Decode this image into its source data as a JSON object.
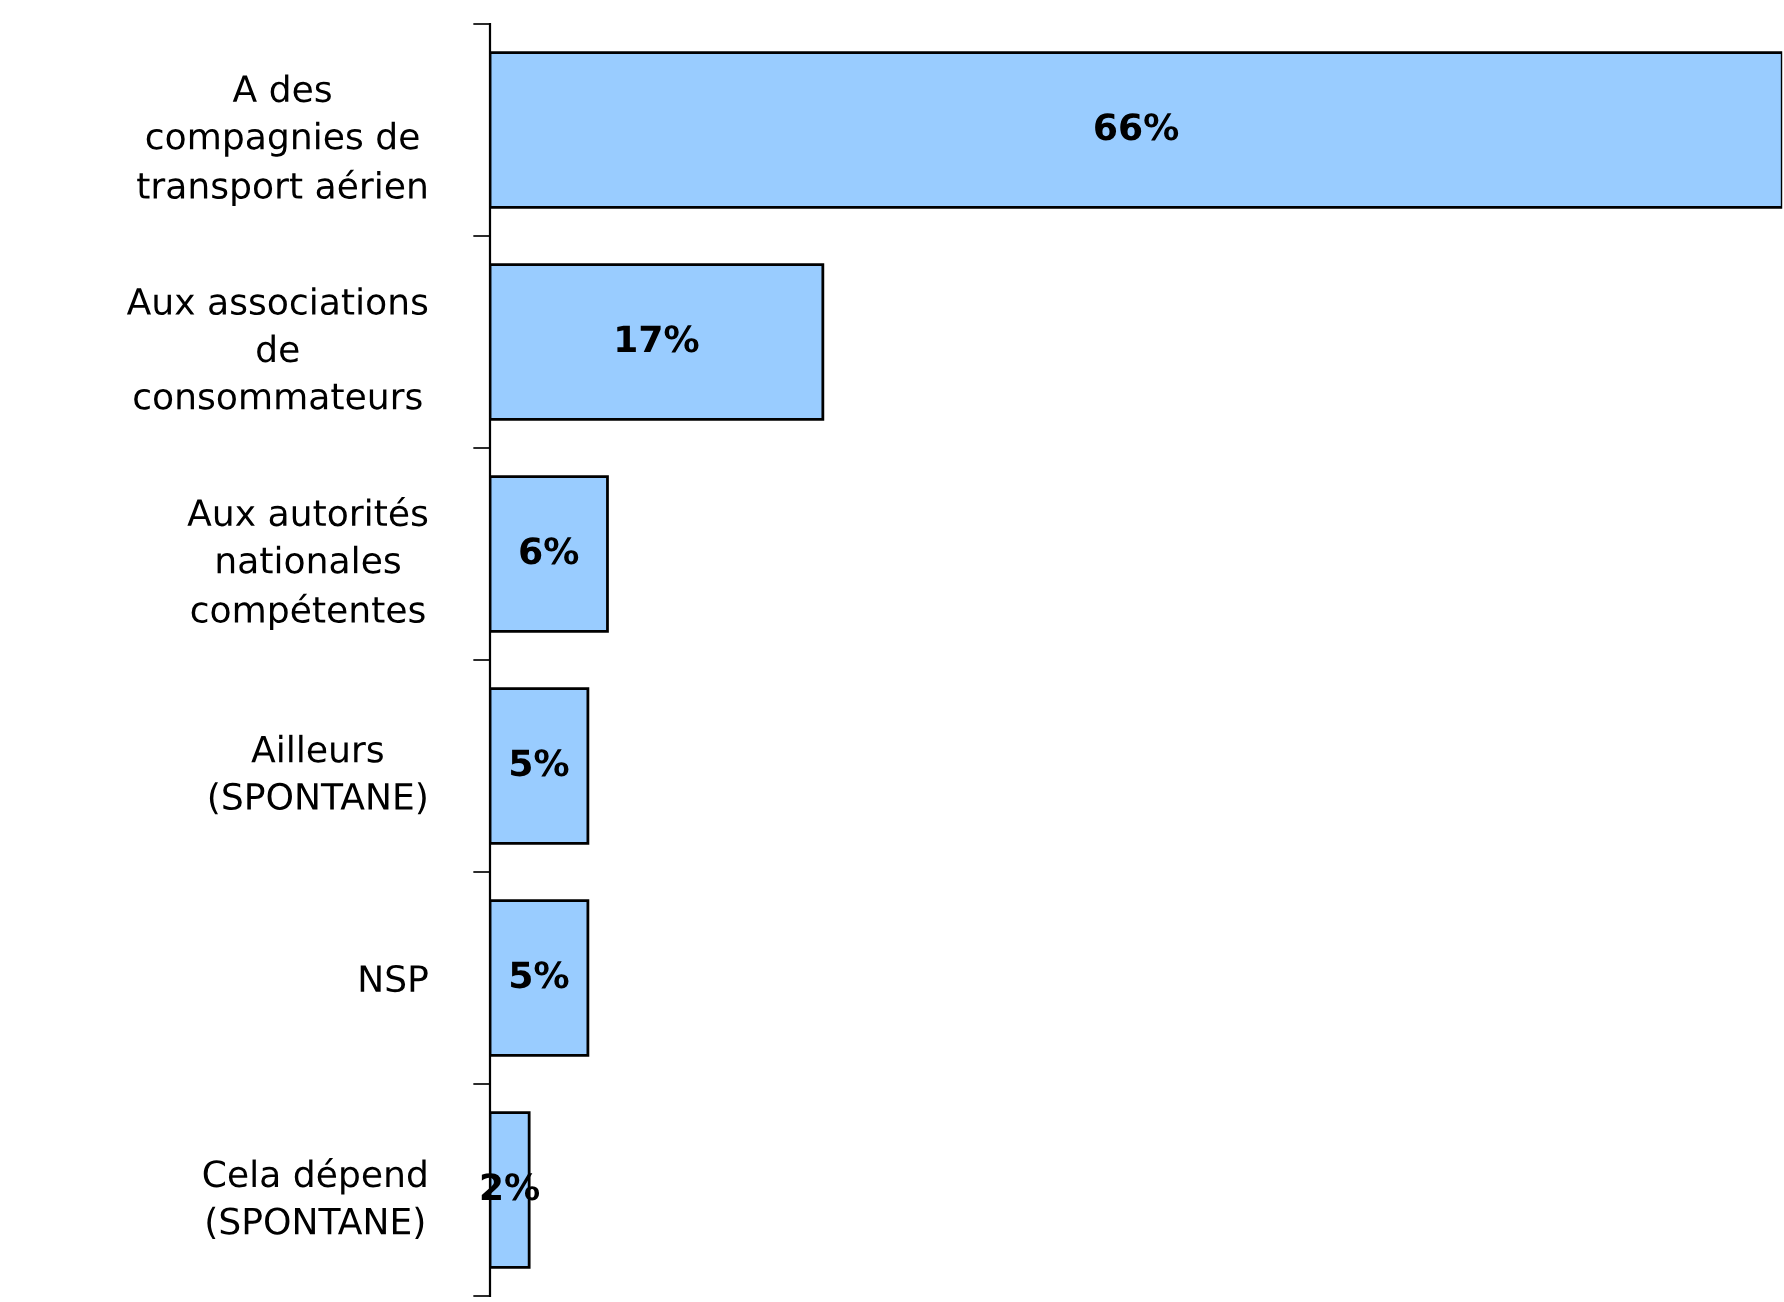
{
  "chart_data": {
    "type": "bar",
    "orientation": "horizontal",
    "categories": [
      "A des\ncompagnies de\ntransport aérien",
      "Aux associations\nde\nconsommateurs",
      "Aux autorités\nnationales\ncompétentes",
      "Ailleurs\n(SPONTANE)",
      "NSP",
      "Cela dépend\n(SPONTANE)"
    ],
    "values": [
      66,
      17,
      6,
      5,
      5,
      2
    ],
    "value_labels": [
      "66%",
      "17%",
      "6%",
      "5%",
      "5%",
      "2%"
    ],
    "color": "#99ccff",
    "xlim": [
      0,
      66
    ],
    "grid": false,
    "legend": false
  }
}
